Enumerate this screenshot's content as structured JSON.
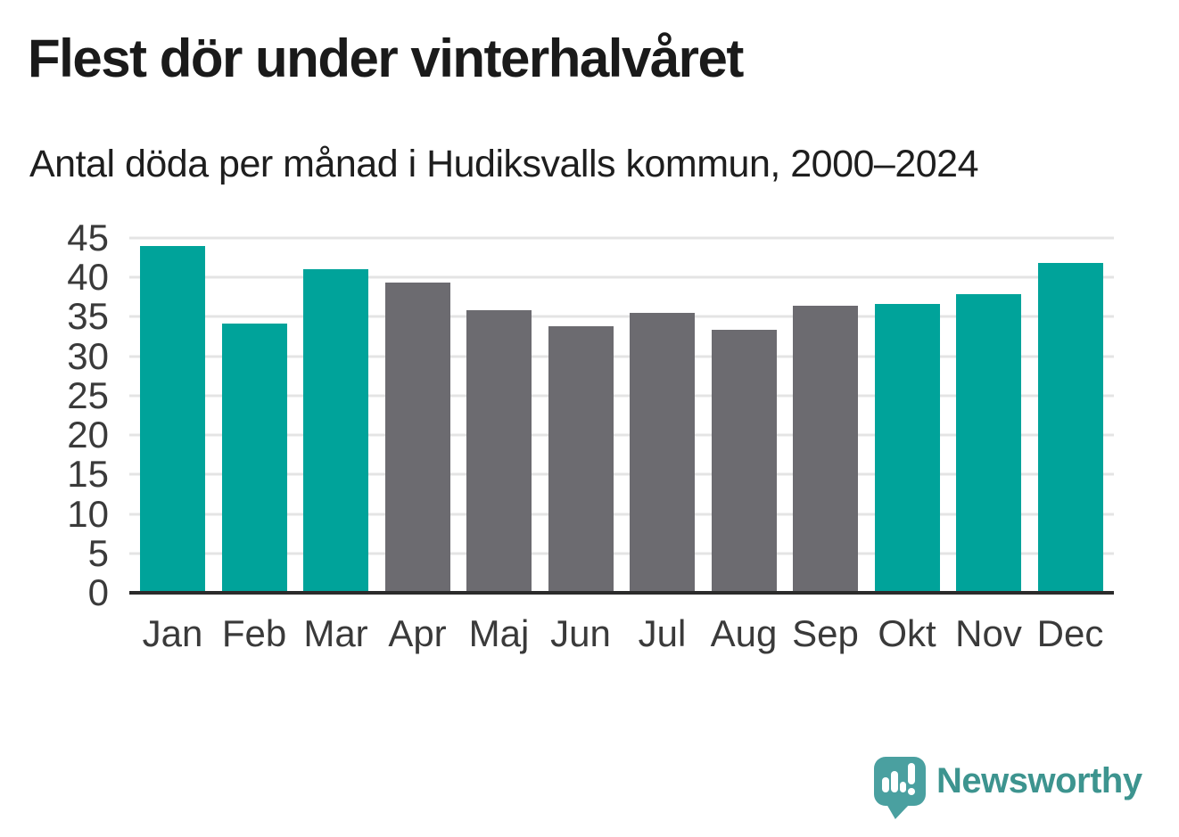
{
  "header": {
    "title": "Flest dör under vinterhalvåret",
    "subtitle": "Antal döda per månad i Hudiksvalls kommun, 2000–2024"
  },
  "chart_data": {
    "type": "bar",
    "title": "Flest dör under vinterhalvåret",
    "subtitle": "Antal döda per månad i Hudiksvalls kommun, 2000–2024",
    "categories": [
      "Jan",
      "Feb",
      "Mar",
      "Apr",
      "Maj",
      "Jun",
      "Jul",
      "Aug",
      "Sep",
      "Okt",
      "Nov",
      "Dec"
    ],
    "values": [
      44.0,
      34.2,
      41.1,
      39.4,
      35.8,
      33.8,
      35.5,
      33.3,
      36.4,
      36.6,
      37.9,
      41.8
    ],
    "bar_colors": [
      "#00a39a",
      "#00a39a",
      "#00a39a",
      "#6c6b70",
      "#6c6b70",
      "#6c6b70",
      "#6c6b70",
      "#6c6b70",
      "#6c6b70",
      "#00a39a",
      "#00a39a",
      "#00a39a"
    ],
    "highlight_color": "#00a39a",
    "neutral_color": "#6c6b70",
    "xlabel": "",
    "ylabel": "",
    "ylim": [
      0,
      45
    ],
    "yticks": [
      0,
      5,
      10,
      15,
      20,
      25,
      30,
      35,
      40,
      45
    ],
    "grid": true,
    "legend": "none",
    "style": {
      "gridline_color": "#e4e4e4",
      "baseline_color": "#2b2b2b",
      "tick_text_color": "#3a3a3a",
      "background": "#ffffff"
    }
  },
  "logo": {
    "text": "Newsworthy",
    "text_color": "#3d948f",
    "icon": "newsworthy-speech-bubble-bar-chart-icon",
    "icon_color": "#4aa0a0"
  }
}
